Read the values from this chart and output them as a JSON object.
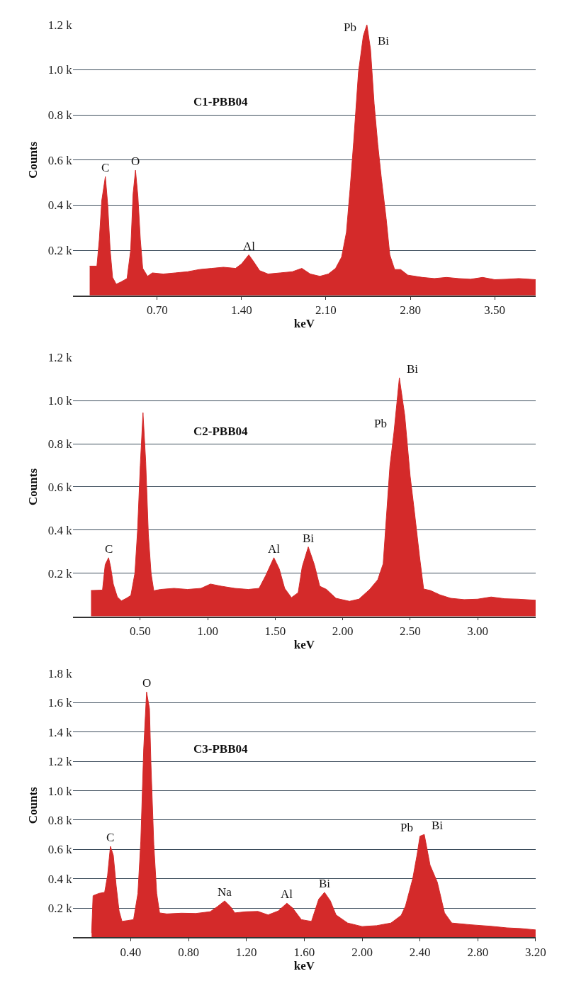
{
  "chart_data": [
    {
      "type": "area",
      "title": "C1-PBB04",
      "xlabel": "keV",
      "ylabel": "Counts",
      "color": "#d42a2a",
      "grid": "y",
      "x": [
        0.14,
        0.2,
        0.22,
        0.24,
        0.27,
        0.29,
        0.31,
        0.33,
        0.36,
        0.4,
        0.45,
        0.48,
        0.5,
        0.52,
        0.54,
        0.56,
        0.58,
        0.62,
        0.66,
        0.75,
        0.85,
        0.95,
        1.05,
        1.15,
        1.25,
        1.35,
        1.4,
        1.46,
        1.5,
        1.55,
        1.62,
        1.72,
        1.82,
        1.9,
        1.97,
        2.05,
        2.12,
        2.18,
        2.23,
        2.27,
        2.3,
        2.33,
        2.37,
        2.41,
        2.44,
        2.47,
        2.5,
        2.53,
        2.56,
        2.6,
        2.63,
        2.67,
        2.72,
        2.78,
        2.9,
        3.0,
        3.1,
        3.2,
        3.3,
        3.4,
        3.5,
        3.6,
        3.7,
        3.84
      ],
      "values": [
        130,
        130,
        250,
        420,
        527,
        400,
        200,
        80,
        50,
        60,
        75,
        200,
        450,
        555,
        440,
        250,
        120,
        85,
        100,
        95,
        100,
        105,
        115,
        120,
        125,
        120,
        140,
        180,
        150,
        110,
        95,
        100,
        105,
        120,
        95,
        85,
        95,
        120,
        170,
        280,
        470,
        680,
        990,
        1150,
        1200,
        1090,
        850,
        670,
        520,
        340,
        180,
        115,
        115,
        90,
        80,
        75,
        80,
        75,
        72,
        80,
        70,
        72,
        75,
        70
      ],
      "xlim": [
        0,
        3.84
      ],
      "xticks": [
        {
          "value": 0.7,
          "label": "0.70"
        },
        {
          "value": 1.4,
          "label": "1.40"
        },
        {
          "value": 2.1,
          "label": "2.10"
        },
        {
          "value": 2.8,
          "label": "2.80"
        },
        {
          "value": 3.5,
          "label": "3.50"
        }
      ],
      "ylim": [
        0,
        1200
      ],
      "yticks": [
        {
          "value": 200,
          "label": "0.2 k"
        },
        {
          "value": 400,
          "label": "0.4 k"
        },
        {
          "value": 600,
          "label": "0.6 k"
        },
        {
          "value": 800,
          "label": "0.8 k"
        },
        {
          "value": 1000,
          "label": "1.0 k"
        },
        {
          "value": 1200,
          "label": "1.2 k"
        }
      ],
      "annotations": [
        {
          "text": "C",
          "x": 0.27,
          "y": 527
        },
        {
          "text": "O",
          "x": 0.52,
          "y": 555
        },
        {
          "text": "Al",
          "x": 1.46,
          "y": 180
        },
        {
          "text": "Pb",
          "x": 2.41,
          "y": 1150
        },
        {
          "text": "Bi",
          "x": 2.47,
          "y": 1090
        }
      ]
    },
    {
      "type": "area",
      "title": "C2-PBB04",
      "xlabel": "keV",
      "ylabel": "Counts",
      "color": "#d42a2a",
      "grid": "y",
      "x": [
        0.135,
        0.22,
        0.24,
        0.265,
        0.28,
        0.3,
        0.33,
        0.36,
        0.4,
        0.43,
        0.46,
        0.48,
        0.5,
        0.52,
        0.54,
        0.56,
        0.58,
        0.6,
        0.65,
        0.75,
        0.85,
        0.95,
        1.02,
        1.1,
        1.2,
        1.3,
        1.38,
        1.43,
        1.49,
        1.53,
        1.57,
        1.62,
        1.67,
        1.7,
        1.745,
        1.79,
        1.83,
        1.88,
        1.95,
        2.05,
        2.12,
        2.2,
        2.26,
        2.3,
        2.35,
        2.38,
        2.42,
        2.46,
        2.5,
        2.53,
        2.57,
        2.6,
        2.65,
        2.72,
        2.8,
        2.9,
        3.0,
        3.1,
        3.2,
        3.3,
        3.43
      ],
      "values": [
        120,
        122,
        240,
        272,
        230,
        150,
        90,
        72,
        85,
        97,
        200,
        400,
        700,
        944,
        720,
        380,
        200,
        119,
        125,
        130,
        125,
        130,
        150,
        140,
        130,
        125,
        130,
        190,
        272,
        220,
        130,
        87,
        110,
        230,
        322,
        240,
        140,
        125,
        84,
        70,
        80,
        125,
        170,
        244,
        697,
        853,
        1106,
        931,
        650,
        494,
        275,
        127,
        120,
        100,
        84,
        78,
        80,
        90,
        82,
        80,
        75
      ],
      "xlim": [
        0,
        3.43
      ],
      "xticks": [
        {
          "value": 0.5,
          "label": "0.50"
        },
        {
          "value": 1.0,
          "label": "1.00"
        },
        {
          "value": 1.5,
          "label": "1.50"
        },
        {
          "value": 2.0,
          "label": "2.00"
        },
        {
          "value": 2.5,
          "label": "2.50"
        },
        {
          "value": 3.0,
          "label": "3.00"
        }
      ],
      "ylim": [
        0,
        1200
      ],
      "yticks": [
        {
          "value": 200,
          "label": "0.2 k"
        },
        {
          "value": 400,
          "label": "0.4 k"
        },
        {
          "value": 600,
          "label": "0.6 k"
        },
        {
          "value": 800,
          "label": "0.8 k"
        },
        {
          "value": 1000,
          "label": "1.0 k"
        },
        {
          "value": 1200,
          "label": "1.2 k"
        }
      ],
      "annotations": [
        {
          "text": "C",
          "x": 0.265,
          "y": 272
        },
        {
          "text": "Al",
          "x": 1.49,
          "y": 272
        },
        {
          "text": "Bi",
          "x": 1.745,
          "y": 322
        },
        {
          "text": "Bi",
          "x": 2.42,
          "y": 1106
        },
        {
          "text": "Pb",
          "x": 2.38,
          "y": 853
        }
      ]
    },
    {
      "type": "area",
      "title": "C3-PBB04",
      "xlabel": "keV",
      "ylabel": "Counts",
      "color": "#d42a2a",
      "grid": "y",
      "x": [
        0.13,
        0.14,
        0.18,
        0.22,
        0.24,
        0.26,
        0.28,
        0.3,
        0.32,
        0.34,
        0.38,
        0.42,
        0.45,
        0.47,
        0.49,
        0.51,
        0.53,
        0.54,
        0.56,
        0.58,
        0.6,
        0.65,
        0.75,
        0.85,
        0.95,
        1.0,
        1.05,
        1.09,
        1.12,
        1.2,
        1.28,
        1.35,
        1.42,
        1.48,
        1.52,
        1.58,
        1.65,
        1.7,
        1.74,
        1.78,
        1.82,
        1.9,
        2.0,
        2.1,
        2.2,
        2.27,
        2.3,
        2.35,
        2.38,
        2.4,
        2.43,
        2.47,
        2.52,
        2.57,
        2.62,
        2.75,
        2.9,
        3.0,
        3.1,
        3.2
      ],
      "values": [
        30,
        284,
        300,
        307,
        420,
        621,
        560,
        350,
        180,
        109,
        115,
        121,
        300,
        656,
        1284,
        1674,
        1560,
        1190,
        632,
        300,
        167,
        160,
        165,
        163,
        175,
        210,
        249,
        210,
        167,
        175,
        177,
        153,
        180,
        233,
        200,
        121,
        109,
        260,
        307,
        250,
        153,
        98,
        74,
        80,
        98,
        150,
        214,
        400,
        563,
        690,
        702,
        493,
        377,
        167,
        98,
        86,
        75,
        65,
        60,
        51
      ],
      "xlim": [
        0,
        3.2
      ],
      "xticks": [
        {
          "value": 0.4,
          "label": "0.40"
        },
        {
          "value": 0.8,
          "label": "0.80"
        },
        {
          "value": 1.2,
          "label": "1.20"
        },
        {
          "value": 1.6,
          "label": "1.60"
        },
        {
          "value": 2.0,
          "label": "2.00"
        },
        {
          "value": 2.4,
          "label": "2.40"
        },
        {
          "value": 2.8,
          "label": "2.80"
        },
        {
          "value": 3.2,
          "label": "3.20"
        }
      ],
      "ylim": [
        0,
        1800
      ],
      "yticks": [
        {
          "value": 200,
          "label": "0.2 k"
        },
        {
          "value": 400,
          "label": "0.4 k"
        },
        {
          "value": 600,
          "label": "0.6 k"
        },
        {
          "value": 800,
          "label": "0.8 k"
        },
        {
          "value": 1000,
          "label": "1.0 k"
        },
        {
          "value": 1200,
          "label": "1.2 k"
        },
        {
          "value": 1400,
          "label": "1.4 k"
        },
        {
          "value": 1600,
          "label": "1.6 k"
        },
        {
          "value": 1800,
          "label": "1.8 k"
        }
      ],
      "annotations": [
        {
          "text": "C",
          "x": 0.26,
          "y": 621
        },
        {
          "text": "O",
          "x": 0.51,
          "y": 1674
        },
        {
          "text": "Na",
          "x": 1.05,
          "y": 249
        },
        {
          "text": "Al",
          "x": 1.48,
          "y": 233
        },
        {
          "text": "Bi",
          "x": 1.74,
          "y": 307
        },
        {
          "text": "Pb",
          "x": 2.4,
          "y": 690
        },
        {
          "text": "Bi",
          "x": 2.43,
          "y": 702
        }
      ]
    }
  ]
}
